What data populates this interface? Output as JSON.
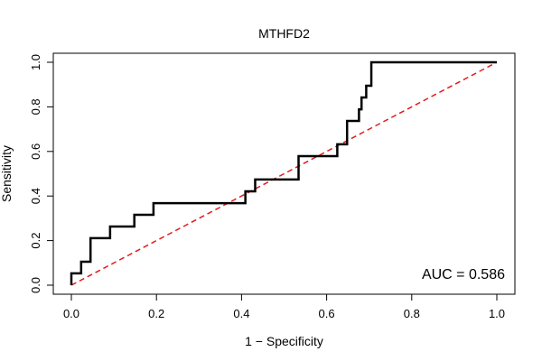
{
  "chart_data": {
    "type": "line",
    "title": "MTHFD2",
    "xlabel": "1 − Specificity",
    "ylabel": "Sensitivity",
    "xlim": [
      0,
      1
    ],
    "ylim": [
      0,
      1
    ],
    "x_ticks": [
      "0.0",
      "0.2",
      "0.4",
      "0.6",
      "0.8",
      "1.0"
    ],
    "y_ticks": [
      "0.0",
      "0.2",
      "0.4",
      "0.6",
      "0.8",
      "1.0"
    ],
    "annotation": "AUC = 0.586",
    "grid": false,
    "series": [
      {
        "name": "ROC curve",
        "color": "#000000",
        "points": [
          [
            0.0,
            0.0
          ],
          [
            0.0,
            0.053
          ],
          [
            0.023,
            0.053
          ],
          [
            0.023,
            0.105
          ],
          [
            0.045,
            0.105
          ],
          [
            0.045,
            0.211
          ],
          [
            0.091,
            0.211
          ],
          [
            0.091,
            0.263
          ],
          [
            0.148,
            0.263
          ],
          [
            0.148,
            0.316
          ],
          [
            0.193,
            0.316
          ],
          [
            0.193,
            0.368
          ],
          [
            0.409,
            0.368
          ],
          [
            0.409,
            0.421
          ],
          [
            0.432,
            0.421
          ],
          [
            0.432,
            0.474
          ],
          [
            0.534,
            0.474
          ],
          [
            0.534,
            0.579
          ],
          [
            0.625,
            0.579
          ],
          [
            0.625,
            0.632
          ],
          [
            0.648,
            0.632
          ],
          [
            0.648,
            0.737
          ],
          [
            0.676,
            0.737
          ],
          [
            0.676,
            0.789
          ],
          [
            0.682,
            0.789
          ],
          [
            0.682,
            0.842
          ],
          [
            0.693,
            0.842
          ],
          [
            0.693,
            0.895
          ],
          [
            0.705,
            0.895
          ],
          [
            0.705,
            1.0
          ],
          [
            1.0,
            1.0
          ]
        ]
      },
      {
        "name": "chance line",
        "color": "#e41a1c",
        "style": "dashed",
        "points": [
          [
            0.0,
            0.0
          ],
          [
            1.0,
            1.0
          ]
        ]
      }
    ]
  }
}
